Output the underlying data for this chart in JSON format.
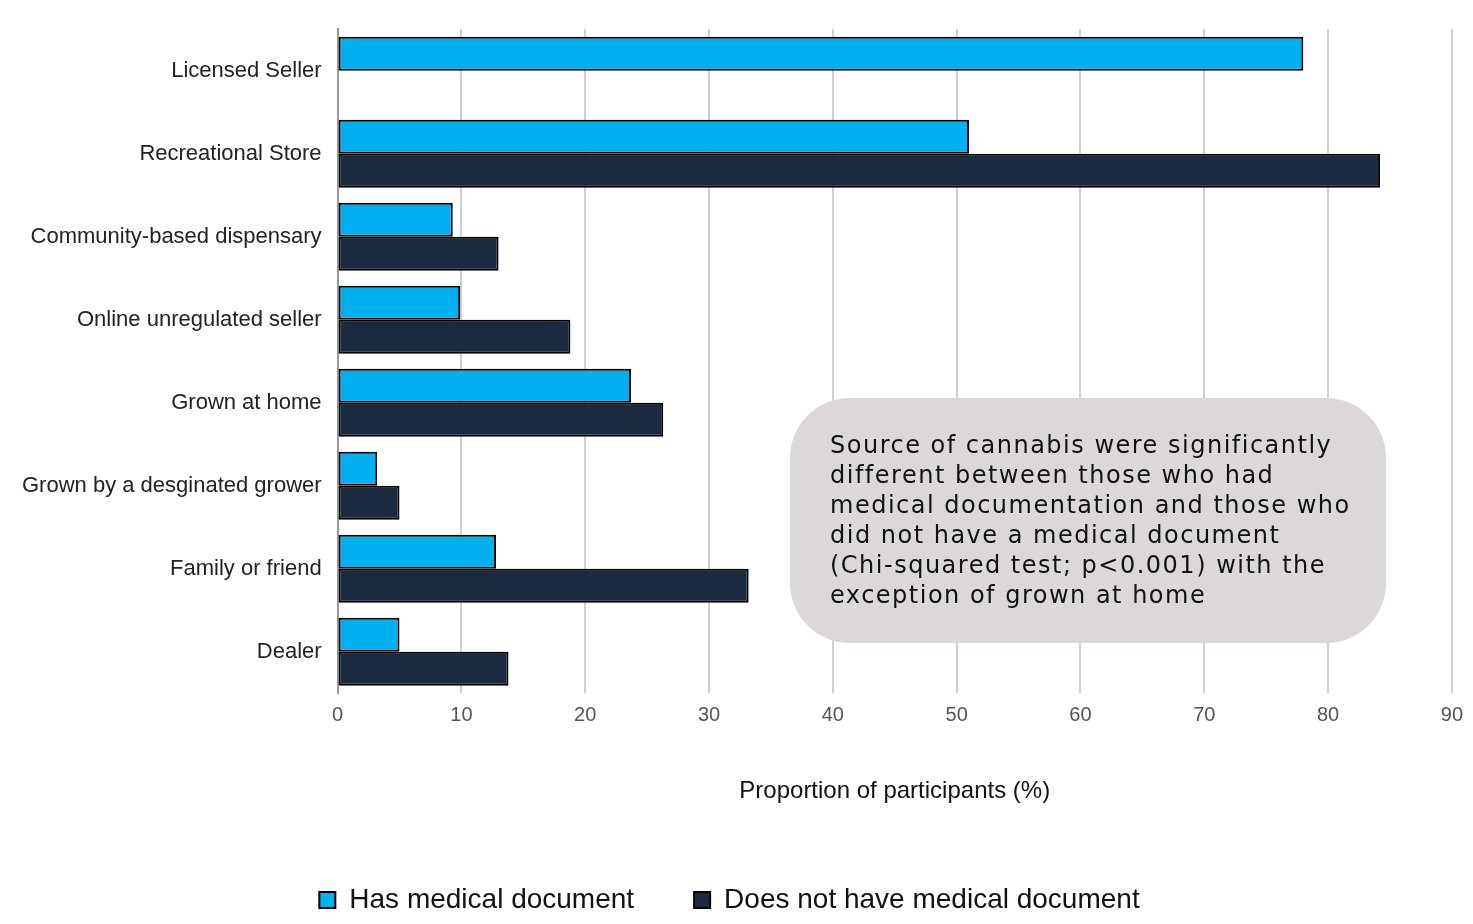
{
  "chart_data": {
    "type": "bar",
    "orientation": "horizontal",
    "categories": [
      "Licensed Seller",
      "Recreational Store",
      "Community-based dispensary",
      "Online unregulated seller",
      "Grown at home",
      "Grown by a desginated grower",
      "Family or friend",
      "Dealer"
    ],
    "series": [
      {
        "name": "Has medical document",
        "color": "#00b0f0",
        "values": [
          78,
          51,
          9.3,
          9.9,
          23.7,
          3.2,
          12.8,
          5
        ]
      },
      {
        "name": "Does not have medical document",
        "color": "#1b2a3f",
        "values": [
          null,
          84.2,
          13,
          18.8,
          26.3,
          5,
          33.2,
          13.8
        ]
      }
    ],
    "xlabel": "Proportion of participants (%)",
    "xlim": [
      0,
      90
    ],
    "xticks": [
      0,
      10,
      20,
      30,
      40,
      50,
      60,
      70,
      80,
      90
    ],
    "grid": "x",
    "legend": "bottom",
    "annotations": [
      "Source of cannabis were significantly different between those who had medical documentation and those who did not have a medical document (Chi-squared test; p<0.001) with the exception of grown at home"
    ]
  }
}
